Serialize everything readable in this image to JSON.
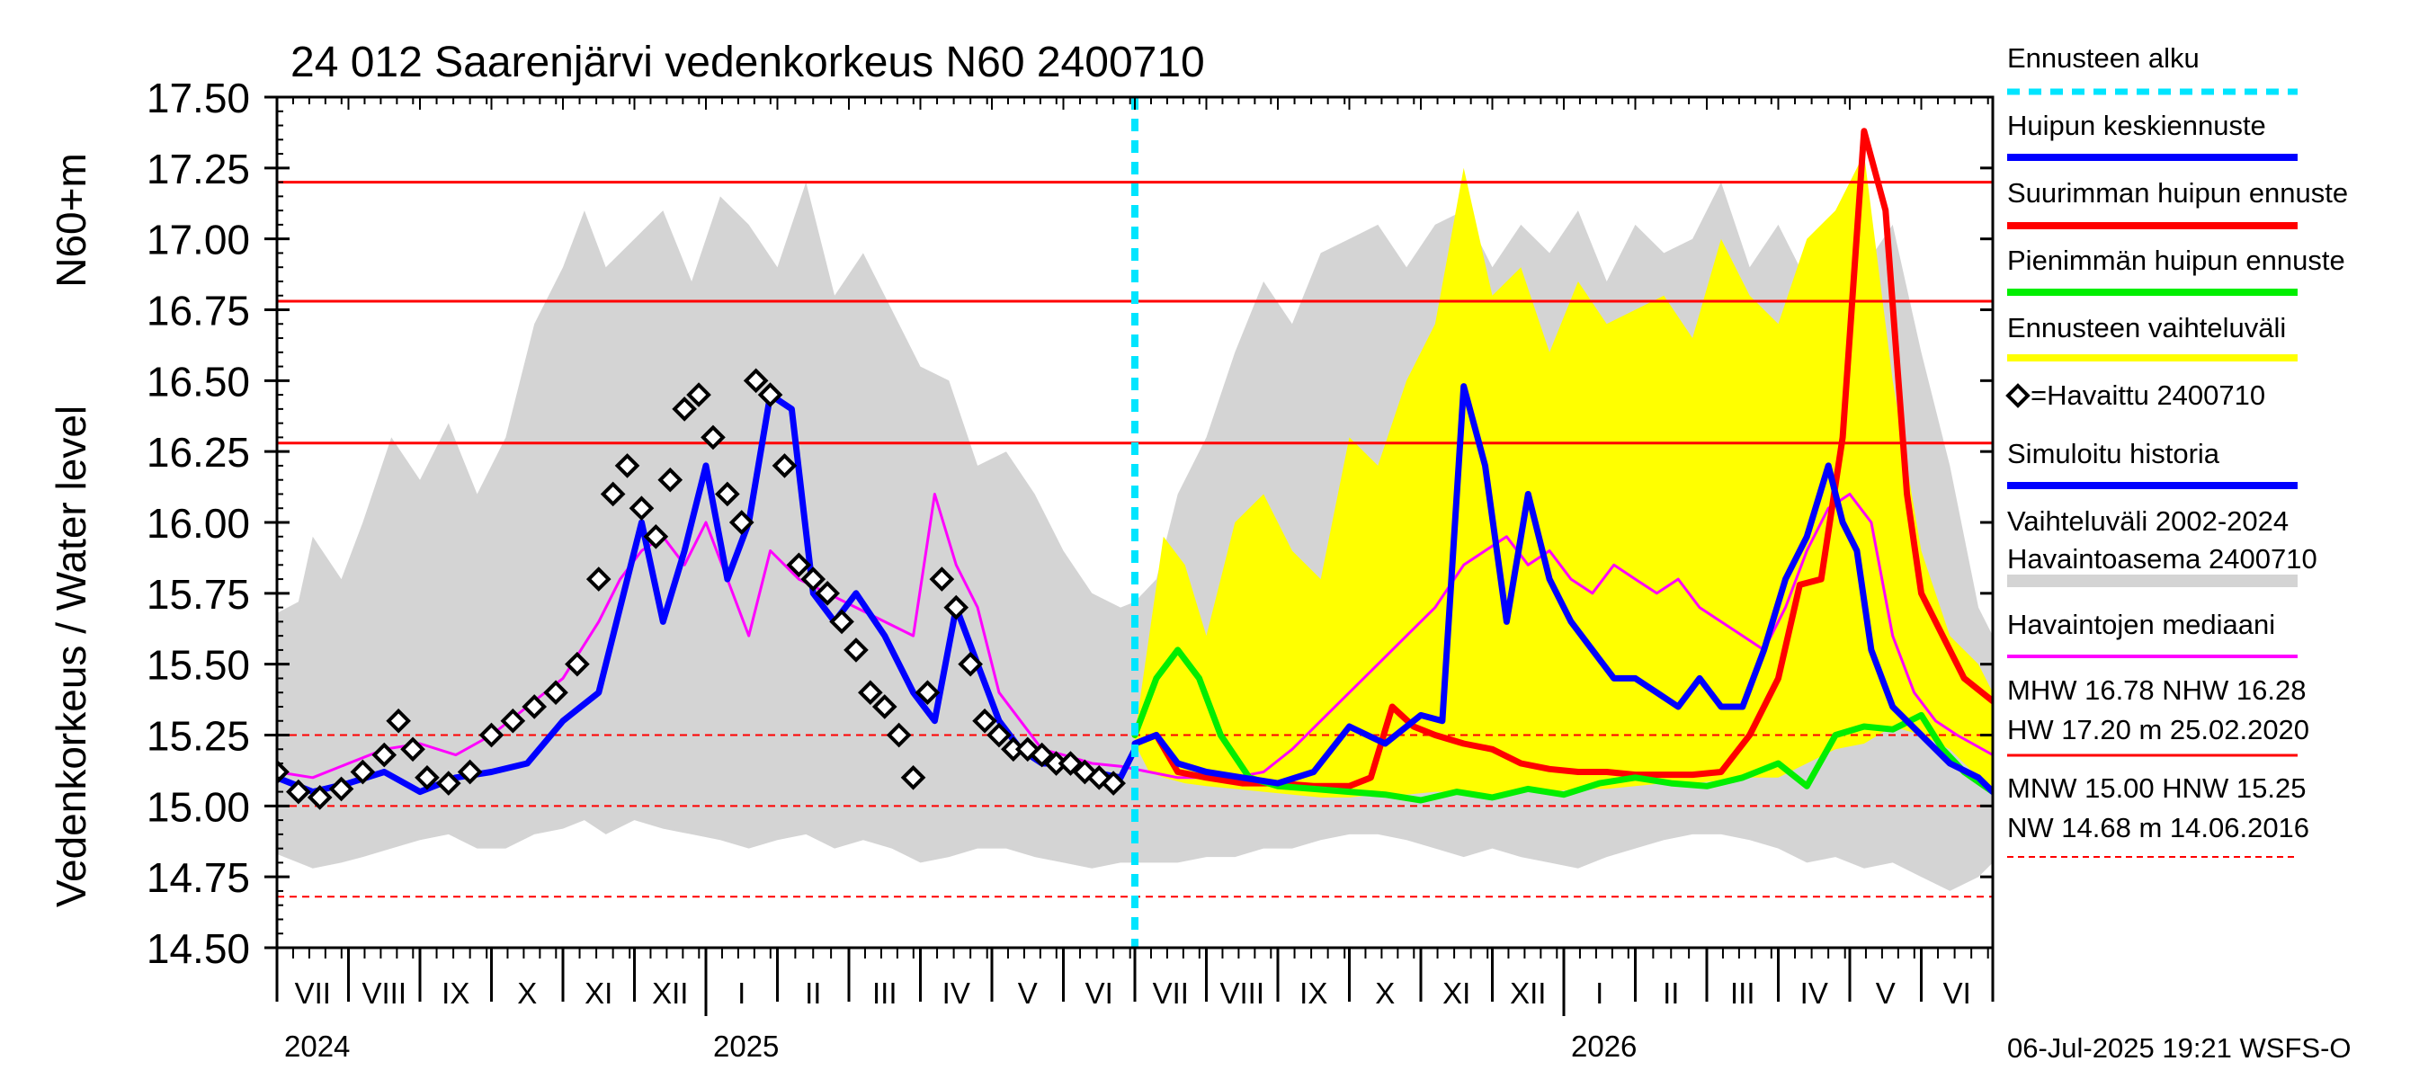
{
  "chart_data": {
    "type": "line",
    "title": "24 012 Saarenjärvi vedenkorkeus N60 2400710",
    "ylabel_main": "Vedenkorkeus / Water level",
    "ylabel_unit": "N60+m",
    "ylim": [
      14.5,
      17.5
    ],
    "yticks": [
      "17.50",
      "17.25",
      "17.00",
      "16.75",
      "16.50",
      "16.25",
      "16.00",
      "15.75",
      "15.50",
      "15.25",
      "15.00",
      "14.75",
      "14.50"
    ],
    "ytick_values": [
      17.5,
      17.25,
      17.0,
      16.75,
      16.5,
      16.25,
      16.0,
      15.75,
      15.5,
      15.25,
      15.0,
      14.75,
      14.5
    ],
    "month_labels": [
      "VII",
      "VIII",
      "IX",
      "X",
      "XI",
      "XII",
      "I",
      "II",
      "III",
      "IV",
      "V",
      "VI",
      "VII",
      "VIII",
      "IX",
      "X",
      "XI",
      "XII",
      "I",
      "II",
      "III",
      "IV",
      "V",
      "VI"
    ],
    "year_labels": [
      "2024",
      "2025",
      "2026"
    ],
    "forecast_start": "2025-07-06",
    "reference_lines": [
      {
        "name": "HW",
        "value": 17.2,
        "style": "solid",
        "color": "#ff0000"
      },
      {
        "name": "MHW",
        "value": 16.78,
        "style": "solid",
        "color": "#ff0000"
      },
      {
        "name": "NHW",
        "value": 16.28,
        "style": "solid",
        "color": "#ff0000"
      },
      {
        "name": "HNW",
        "value": 15.25,
        "style": "dashed",
        "color": "#ff0000"
      },
      {
        "name": "MNW",
        "value": 15.0,
        "style": "dashed",
        "color": "#ff0000"
      },
      {
        "name": "NW",
        "value": 14.68,
        "style": "dashed",
        "color": "#ff0000"
      }
    ],
    "variation_band": {
      "name": "Vaihteluväli 2002-2024 Havaintoasema 2400710",
      "color": "#d4d4d4",
      "x": [
        0,
        0.3,
        0.5,
        0.9,
        1.2,
        1.6,
        2.0,
        2.4,
        2.8,
        3.2,
        3.6,
        4.0,
        4.3,
        4.6,
        5.0,
        5.4,
        5.8,
        6.2,
        6.6,
        7.0,
        7.4,
        7.8,
        8.2,
        8.6,
        9.0,
        9.4,
        9.8,
        10.2,
        10.6,
        11.0,
        11.4,
        11.8,
        12.0,
        12.3,
        12.6,
        13.0,
        13.4,
        13.8,
        14.2,
        14.6,
        15.0,
        15.4,
        15.8,
        16.2,
        16.6,
        17.0,
        17.4,
        17.8,
        18.2,
        18.6,
        19.0,
        19.4,
        19.8,
        20.2,
        20.6,
        21.0,
        21.4,
        21.8,
        22.2,
        22.6,
        23.0,
        23.4,
        23.8,
        24.0
      ],
      "upper": [
        15.68,
        15.72,
        15.95,
        15.8,
        16.0,
        16.3,
        16.15,
        16.35,
        16.1,
        16.3,
        16.7,
        16.9,
        17.1,
        16.9,
        17.0,
        17.1,
        16.85,
        17.15,
        17.05,
        16.9,
        17.2,
        16.8,
        16.95,
        16.75,
        16.55,
        16.5,
        16.2,
        16.25,
        16.1,
        15.9,
        15.75,
        15.7,
        15.72,
        15.8,
        16.1,
        16.3,
        16.6,
        16.85,
        16.7,
        16.95,
        17.0,
        17.05,
        16.9,
        17.05,
        17.1,
        16.9,
        17.05,
        16.95,
        17.1,
        16.85,
        17.05,
        16.95,
        17.0,
        17.2,
        16.9,
        17.05,
        16.85,
        17.1,
        16.9,
        17.05,
        16.6,
        16.2,
        15.7,
        15.6
      ],
      "lower": [
        14.83,
        14.8,
        14.78,
        14.8,
        14.82,
        14.85,
        14.88,
        14.9,
        14.85,
        14.85,
        14.9,
        14.92,
        14.95,
        14.9,
        14.95,
        14.92,
        14.9,
        14.88,
        14.85,
        14.88,
        14.9,
        14.85,
        14.88,
        14.85,
        14.8,
        14.82,
        14.85,
        14.85,
        14.82,
        14.8,
        14.78,
        14.8,
        14.8,
        14.8,
        14.8,
        14.82,
        14.82,
        14.85,
        14.85,
        14.88,
        14.9,
        14.9,
        14.88,
        14.85,
        14.82,
        14.85,
        14.82,
        14.8,
        14.78,
        14.82,
        14.85,
        14.88,
        14.9,
        14.9,
        14.88,
        14.85,
        14.8,
        14.82,
        14.78,
        14.8,
        14.75,
        14.7,
        14.75,
        14.8
      ]
    },
    "forecast_band": {
      "name": "Ennusteen vaihteluväli",
      "color": "#ffff00",
      "x": [
        12.0,
        12.2,
        12.4,
        12.7,
        13.0,
        13.4,
        13.8,
        14.2,
        14.6,
        15.0,
        15.4,
        15.8,
        16.2,
        16.6,
        17.0,
        17.4,
        17.8,
        18.2,
        18.6,
        19.0,
        19.4,
        19.8,
        20.2,
        20.6,
        21.0,
        21.4,
        21.8,
        22.2,
        22.6,
        23.0,
        23.4,
        23.8,
        24.0
      ],
      "upper": [
        15.25,
        15.6,
        15.95,
        15.85,
        15.6,
        16.0,
        16.1,
        15.9,
        15.8,
        16.3,
        16.2,
        16.5,
        16.7,
        17.25,
        16.8,
        16.9,
        16.6,
        16.85,
        16.7,
        16.75,
        16.8,
        16.65,
        17.0,
        16.8,
        16.7,
        17.0,
        17.1,
        17.3,
        16.5,
        15.9,
        15.6,
        15.5,
        15.4
      ],
      "lower": [
        15.22,
        15.12,
        15.1,
        15.08,
        15.07,
        15.06,
        15.05,
        15.04,
        15.03,
        15.03,
        15.04,
        15.04,
        15.05,
        15.05,
        15.04,
        15.05,
        15.05,
        15.06,
        15.06,
        15.07,
        15.08,
        15.08,
        15.09,
        15.1,
        15.1,
        15.15,
        15.2,
        15.22,
        15.28,
        15.25,
        15.2,
        15.1,
        15.05
      ]
    },
    "series": [
      {
        "name": "Havaintojen mediaani",
        "color": "#ff00ff",
        "style": "thin",
        "x": [
          0,
          0.5,
          1.0,
          1.5,
          2.0,
          2.5,
          3.0,
          3.5,
          4.0,
          4.5,
          4.8,
          5.1,
          5.4,
          5.7,
          6.0,
          6.3,
          6.6,
          6.9,
          7.3,
          7.7,
          8.1,
          8.5,
          8.9,
          9.2,
          9.5,
          9.8,
          10.1,
          10.4,
          10.7,
          11.0,
          11.4,
          11.8,
          12.2,
          12.6,
          13.0,
          13.4,
          13.8,
          14.2,
          14.6,
          15.0,
          15.4,
          15.8,
          16.2,
          16.6,
          16.9,
          17.2,
          17.5,
          17.8,
          18.1,
          18.4,
          18.7,
          19.0,
          19.3,
          19.6,
          19.9,
          20.2,
          20.5,
          20.8,
          21.1,
          21.4,
          21.7,
          22.0,
          22.3,
          22.6,
          22.9,
          23.2,
          23.5,
          24.0
        ],
        "y": [
          15.12,
          15.1,
          15.15,
          15.2,
          15.22,
          15.18,
          15.25,
          15.35,
          15.45,
          15.65,
          15.8,
          15.9,
          15.95,
          15.85,
          16.0,
          15.8,
          15.6,
          15.9,
          15.8,
          15.75,
          15.7,
          15.65,
          15.6,
          16.1,
          15.85,
          15.7,
          15.4,
          15.3,
          15.2,
          15.18,
          15.15,
          15.14,
          15.12,
          15.1,
          15.1,
          15.1,
          15.12,
          15.2,
          15.3,
          15.4,
          15.5,
          15.6,
          15.7,
          15.85,
          15.9,
          15.95,
          15.85,
          15.9,
          15.8,
          15.75,
          15.85,
          15.8,
          15.75,
          15.8,
          15.7,
          15.65,
          15.6,
          15.55,
          15.7,
          15.9,
          16.05,
          16.1,
          16.0,
          15.6,
          15.4,
          15.3,
          15.25,
          15.18
        ]
      },
      {
        "name": "Simuloitu historia",
        "color": "#0000ff",
        "style": "thick",
        "x": [
          0,
          0.5,
          1.0,
          1.5,
          2.0,
          2.5,
          3.0,
          3.5,
          4.0,
          4.5,
          4.8,
          5.1,
          5.4,
          5.7,
          6.0,
          6.3,
          6.6,
          6.9,
          7.2,
          7.5,
          7.8,
          8.1,
          8.5,
          8.9,
          9.2,
          9.5,
          9.8,
          10.1,
          10.4,
          10.7,
          11.0,
          11.4,
          11.8,
          12.0
        ],
        "y": [
          15.1,
          15.05,
          15.08,
          15.12,
          15.05,
          15.1,
          15.12,
          15.15,
          15.3,
          15.4,
          15.7,
          16.0,
          15.65,
          15.9,
          16.2,
          15.8,
          16.0,
          16.45,
          16.4,
          15.75,
          15.65,
          15.75,
          15.6,
          15.4,
          15.3,
          15.7,
          15.5,
          15.3,
          15.2,
          15.15,
          15.15,
          15.12,
          15.1,
          15.2
        ]
      },
      {
        "name": "Havaittu 2400710",
        "color": "#000000",
        "style": "markers",
        "x": [
          0,
          0.3,
          0.6,
          0.9,
          1.2,
          1.5,
          1.7,
          1.9,
          2.1,
          2.4,
          2.7,
          3.0,
          3.3,
          3.6,
          3.9,
          4.2,
          4.5,
          4.7,
          4.9,
          5.1,
          5.3,
          5.5,
          5.7,
          5.9,
          6.1,
          6.3,
          6.5,
          6.7,
          6.9,
          7.1,
          7.3,
          7.5,
          7.7,
          7.9,
          8.1,
          8.3,
          8.5,
          8.7,
          8.9,
          9.1,
          9.3,
          9.5,
          9.7,
          9.9,
          10.1,
          10.3,
          10.5,
          10.7,
          10.9,
          11.1,
          11.3,
          11.5,
          11.7
        ],
        "y": [
          15.12,
          15.05,
          15.03,
          15.06,
          15.12,
          15.18,
          15.3,
          15.2,
          15.1,
          15.08,
          15.12,
          15.25,
          15.3,
          15.35,
          15.4,
          15.5,
          15.8,
          16.1,
          16.2,
          16.05,
          15.95,
          16.15,
          16.4,
          16.45,
          16.3,
          16.1,
          16.0,
          16.5,
          16.45,
          16.2,
          15.85,
          15.8,
          15.75,
          15.65,
          15.55,
          15.4,
          15.35,
          15.25,
          15.1,
          15.4,
          15.8,
          15.7,
          15.5,
          15.3,
          15.25,
          15.2,
          15.2,
          15.18,
          15.15,
          15.15,
          15.12,
          15.1,
          15.08
        ]
      },
      {
        "name": "Suurimman huipun ennuste",
        "color": "#ff0000",
        "style": "thick",
        "x": [
          12.0,
          12.3,
          12.6,
          13.0,
          13.5,
          14.0,
          14.5,
          15.0,
          15.3,
          15.6,
          15.9,
          16.2,
          16.6,
          17.0,
          17.4,
          17.8,
          18.2,
          18.6,
          19.0,
          19.4,
          19.8,
          20.2,
          20.6,
          21.0,
          21.3,
          21.6,
          21.9,
          22.2,
          22.5,
          22.8,
          23.0,
          23.3,
          23.6,
          24.0
        ],
        "y": [
          15.22,
          15.25,
          15.12,
          15.1,
          15.08,
          15.08,
          15.07,
          15.07,
          15.1,
          15.35,
          15.28,
          15.25,
          15.22,
          15.2,
          15.15,
          15.13,
          15.12,
          15.12,
          15.11,
          15.11,
          15.11,
          15.12,
          15.25,
          15.45,
          15.78,
          15.8,
          16.3,
          17.38,
          17.1,
          16.1,
          15.75,
          15.6,
          15.45,
          15.37
        ]
      },
      {
        "name": "Pienimmän huipun ennuste",
        "color": "#00ee00",
        "style": "thick",
        "x": [
          12.0,
          12.3,
          12.6,
          12.9,
          13.2,
          13.6,
          14.0,
          14.5,
          15.0,
          15.5,
          16.0,
          16.5,
          17.0,
          17.5,
          18.0,
          18.5,
          19.0,
          19.5,
          20.0,
          20.5,
          21.0,
          21.4,
          21.8,
          22.2,
          22.6,
          23.0,
          23.3,
          23.6,
          24.0
        ],
        "y": [
          15.25,
          15.45,
          15.55,
          15.45,
          15.25,
          15.1,
          15.07,
          15.06,
          15.05,
          15.04,
          15.02,
          15.05,
          15.03,
          15.06,
          15.04,
          15.08,
          15.1,
          15.08,
          15.07,
          15.1,
          15.15,
          15.07,
          15.25,
          15.28,
          15.27,
          15.32,
          15.2,
          15.12,
          15.05
        ]
      },
      {
        "name": "Huipun keskiennuste",
        "color": "#0000ff",
        "style": "thick",
        "x": [
          12.0,
          12.3,
          12.6,
          13.0,
          13.5,
          14.0,
          14.5,
          15.0,
          15.5,
          16.0,
          16.3,
          16.6,
          16.9,
          17.2,
          17.5,
          17.8,
          18.1,
          18.4,
          18.7,
          19.0,
          19.3,
          19.6,
          19.9,
          20.2,
          20.5,
          20.8,
          21.1,
          21.4,
          21.7,
          21.9,
          22.1,
          22.3,
          22.6,
          23.0,
          23.4,
          23.8,
          24.0
        ],
        "y": [
          15.22,
          15.25,
          15.15,
          15.12,
          15.1,
          15.08,
          15.12,
          15.28,
          15.22,
          15.32,
          15.3,
          16.48,
          16.2,
          15.65,
          16.1,
          15.8,
          15.65,
          15.55,
          15.45,
          15.45,
          15.4,
          15.35,
          15.45,
          15.35,
          15.35,
          15.55,
          15.8,
          15.95,
          16.2,
          16.0,
          15.9,
          15.55,
          15.35,
          15.25,
          15.15,
          15.1,
          15.05
        ]
      }
    ],
    "legend": [
      {
        "label": "Ennusteen alku",
        "color": "#00e5ff",
        "type": "dashed"
      },
      {
        "label": "Huipun keskiennuste",
        "color": "#0000ff",
        "type": "line"
      },
      {
        "label": "Suurimman huipun ennuste",
        "color": "#ff0000",
        "type": "line"
      },
      {
        "label": "Pienimmän huipun ennuste",
        "color": "#00ee00",
        "type": "line"
      },
      {
        "label": "Ennusteen vaihteluväli",
        "color": "#ffff00",
        "type": "line"
      },
      {
        "label": "=Havaittu 2400710",
        "color": "#000000",
        "type": "marker"
      },
      {
        "label": "Simuloitu historia",
        "color": "#0000ff",
        "type": "line"
      },
      {
        "label": "Vaihteluväli 2002-2024",
        "label2": " Havaintoasema 2400710",
        "color": "#d4d4d4",
        "type": "band"
      },
      {
        "label": "Havaintojen mediaani",
        "color": "#ff00ff",
        "type": "line"
      }
    ],
    "stats": {
      "line1": "MHW  16.78 NHW  16.28",
      "line2": "HW  17.20 m 25.02.2020",
      "line3": "MNW  15.00 HNW  15.25",
      "line4": "NW  14.68 m 14.06.2016"
    },
    "footer": "06-Jul-2025 19:21 WSFS-O"
  }
}
